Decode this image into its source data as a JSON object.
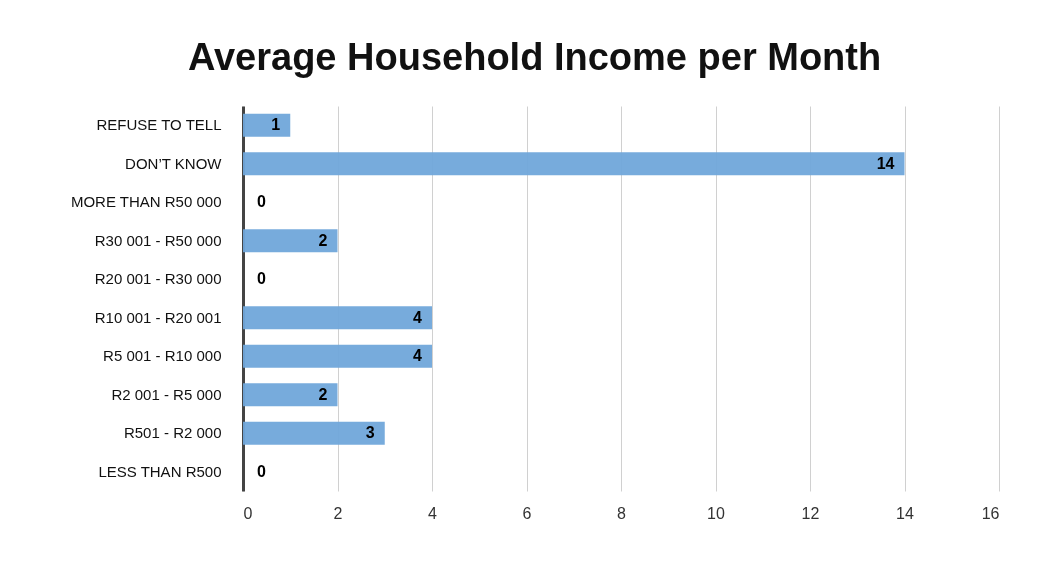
{
  "chart_data": {
    "type": "bar",
    "orientation": "horizontal",
    "title": "Average Household Income per Month",
    "categories": [
      "REFUSE TO TELL",
      "DON’T KNOW",
      "MORE THAN R50 000",
      "R30 001 - R50 000",
      "R20 001 - R30 000",
      "R10 001 - R20 001",
      "R5 001 - R10 000",
      "R2 001 - R5 000",
      "R501 - R2 000",
      "LESS THAN R500"
    ],
    "values": [
      1,
      14,
      0,
      2,
      0,
      4,
      4,
      2,
      3,
      0
    ],
    "data_labels": true,
    "color": "#70a6da",
    "xlim": [
      0,
      16
    ],
    "xticks": [
      0,
      2,
      4,
      6,
      8,
      10,
      12,
      14,
      16
    ],
    "grid": "x"
  }
}
